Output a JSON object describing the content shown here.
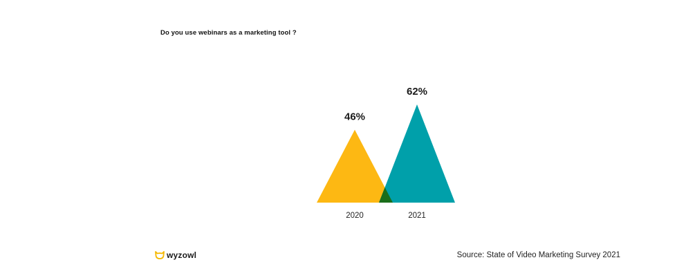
{
  "question": "Do you use webinars as a marketing tool ?",
  "brand": {
    "name": "wyzowl",
    "icon": "owl-logo-icon",
    "color": "#F5B800"
  },
  "source": "Source: State of Video Marketing Survey 2021",
  "chart_data": {
    "type": "area",
    "categories": [
      "2020",
      "2021"
    ],
    "values": [
      46,
      62
    ],
    "value_labels": [
      "46%",
      "62%"
    ],
    "unit": "%",
    "colors": [
      "#FDB813",
      "#00A0AA"
    ],
    "overlap_color": "#1A6E1A",
    "ylim": [
      0,
      100
    ],
    "grid": false,
    "legend": "none"
  }
}
